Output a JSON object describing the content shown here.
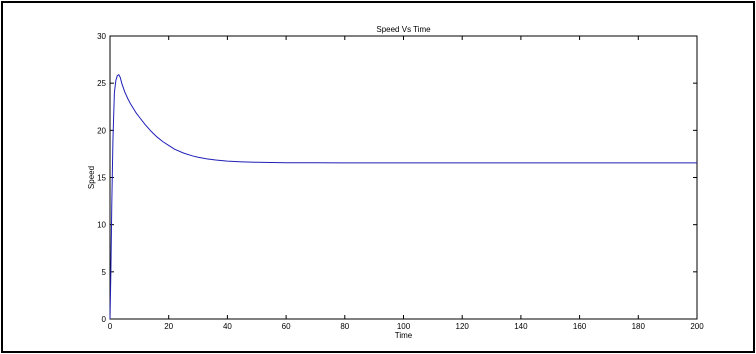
{
  "chart_data": {
    "type": "line",
    "title": "Speed Vs Time",
    "xlabel": "Time",
    "ylabel": "Speed",
    "xlim": [
      0,
      200
    ],
    "ylim": [
      0,
      30
    ],
    "xticks": [
      0,
      20,
      40,
      60,
      80,
      100,
      120,
      140,
      160,
      180,
      200
    ],
    "yticks": [
      0,
      5,
      10,
      15,
      20,
      25,
      30
    ],
    "grid": false,
    "line_color": "#1f1fb8",
    "series": [
      {
        "x": [
          0,
          0.3,
          0.6,
          1,
          1.5,
          2,
          2.5,
          3,
          3.5,
          4,
          5,
          6,
          7,
          8,
          9,
          10,
          12,
          14,
          16,
          18,
          20,
          22,
          25,
          28,
          30,
          33,
          36,
          40,
          45,
          50,
          55,
          60,
          70,
          80,
          100,
          120,
          140,
          160,
          180,
          200
        ],
        "y": [
          0,
          5,
          12,
          19,
          24,
          25.3,
          25.8,
          25.9,
          25.6,
          25.0,
          24.1,
          23.4,
          22.8,
          22.3,
          21.8,
          21.4,
          20.6,
          19.9,
          19.3,
          18.8,
          18.4,
          18.0,
          17.6,
          17.3,
          17.15,
          16.98,
          16.85,
          16.74,
          16.66,
          16.61,
          16.59,
          16.57,
          16.56,
          16.55,
          16.55,
          16.55,
          16.55,
          16.55,
          16.55,
          16.55
        ]
      }
    ]
  }
}
